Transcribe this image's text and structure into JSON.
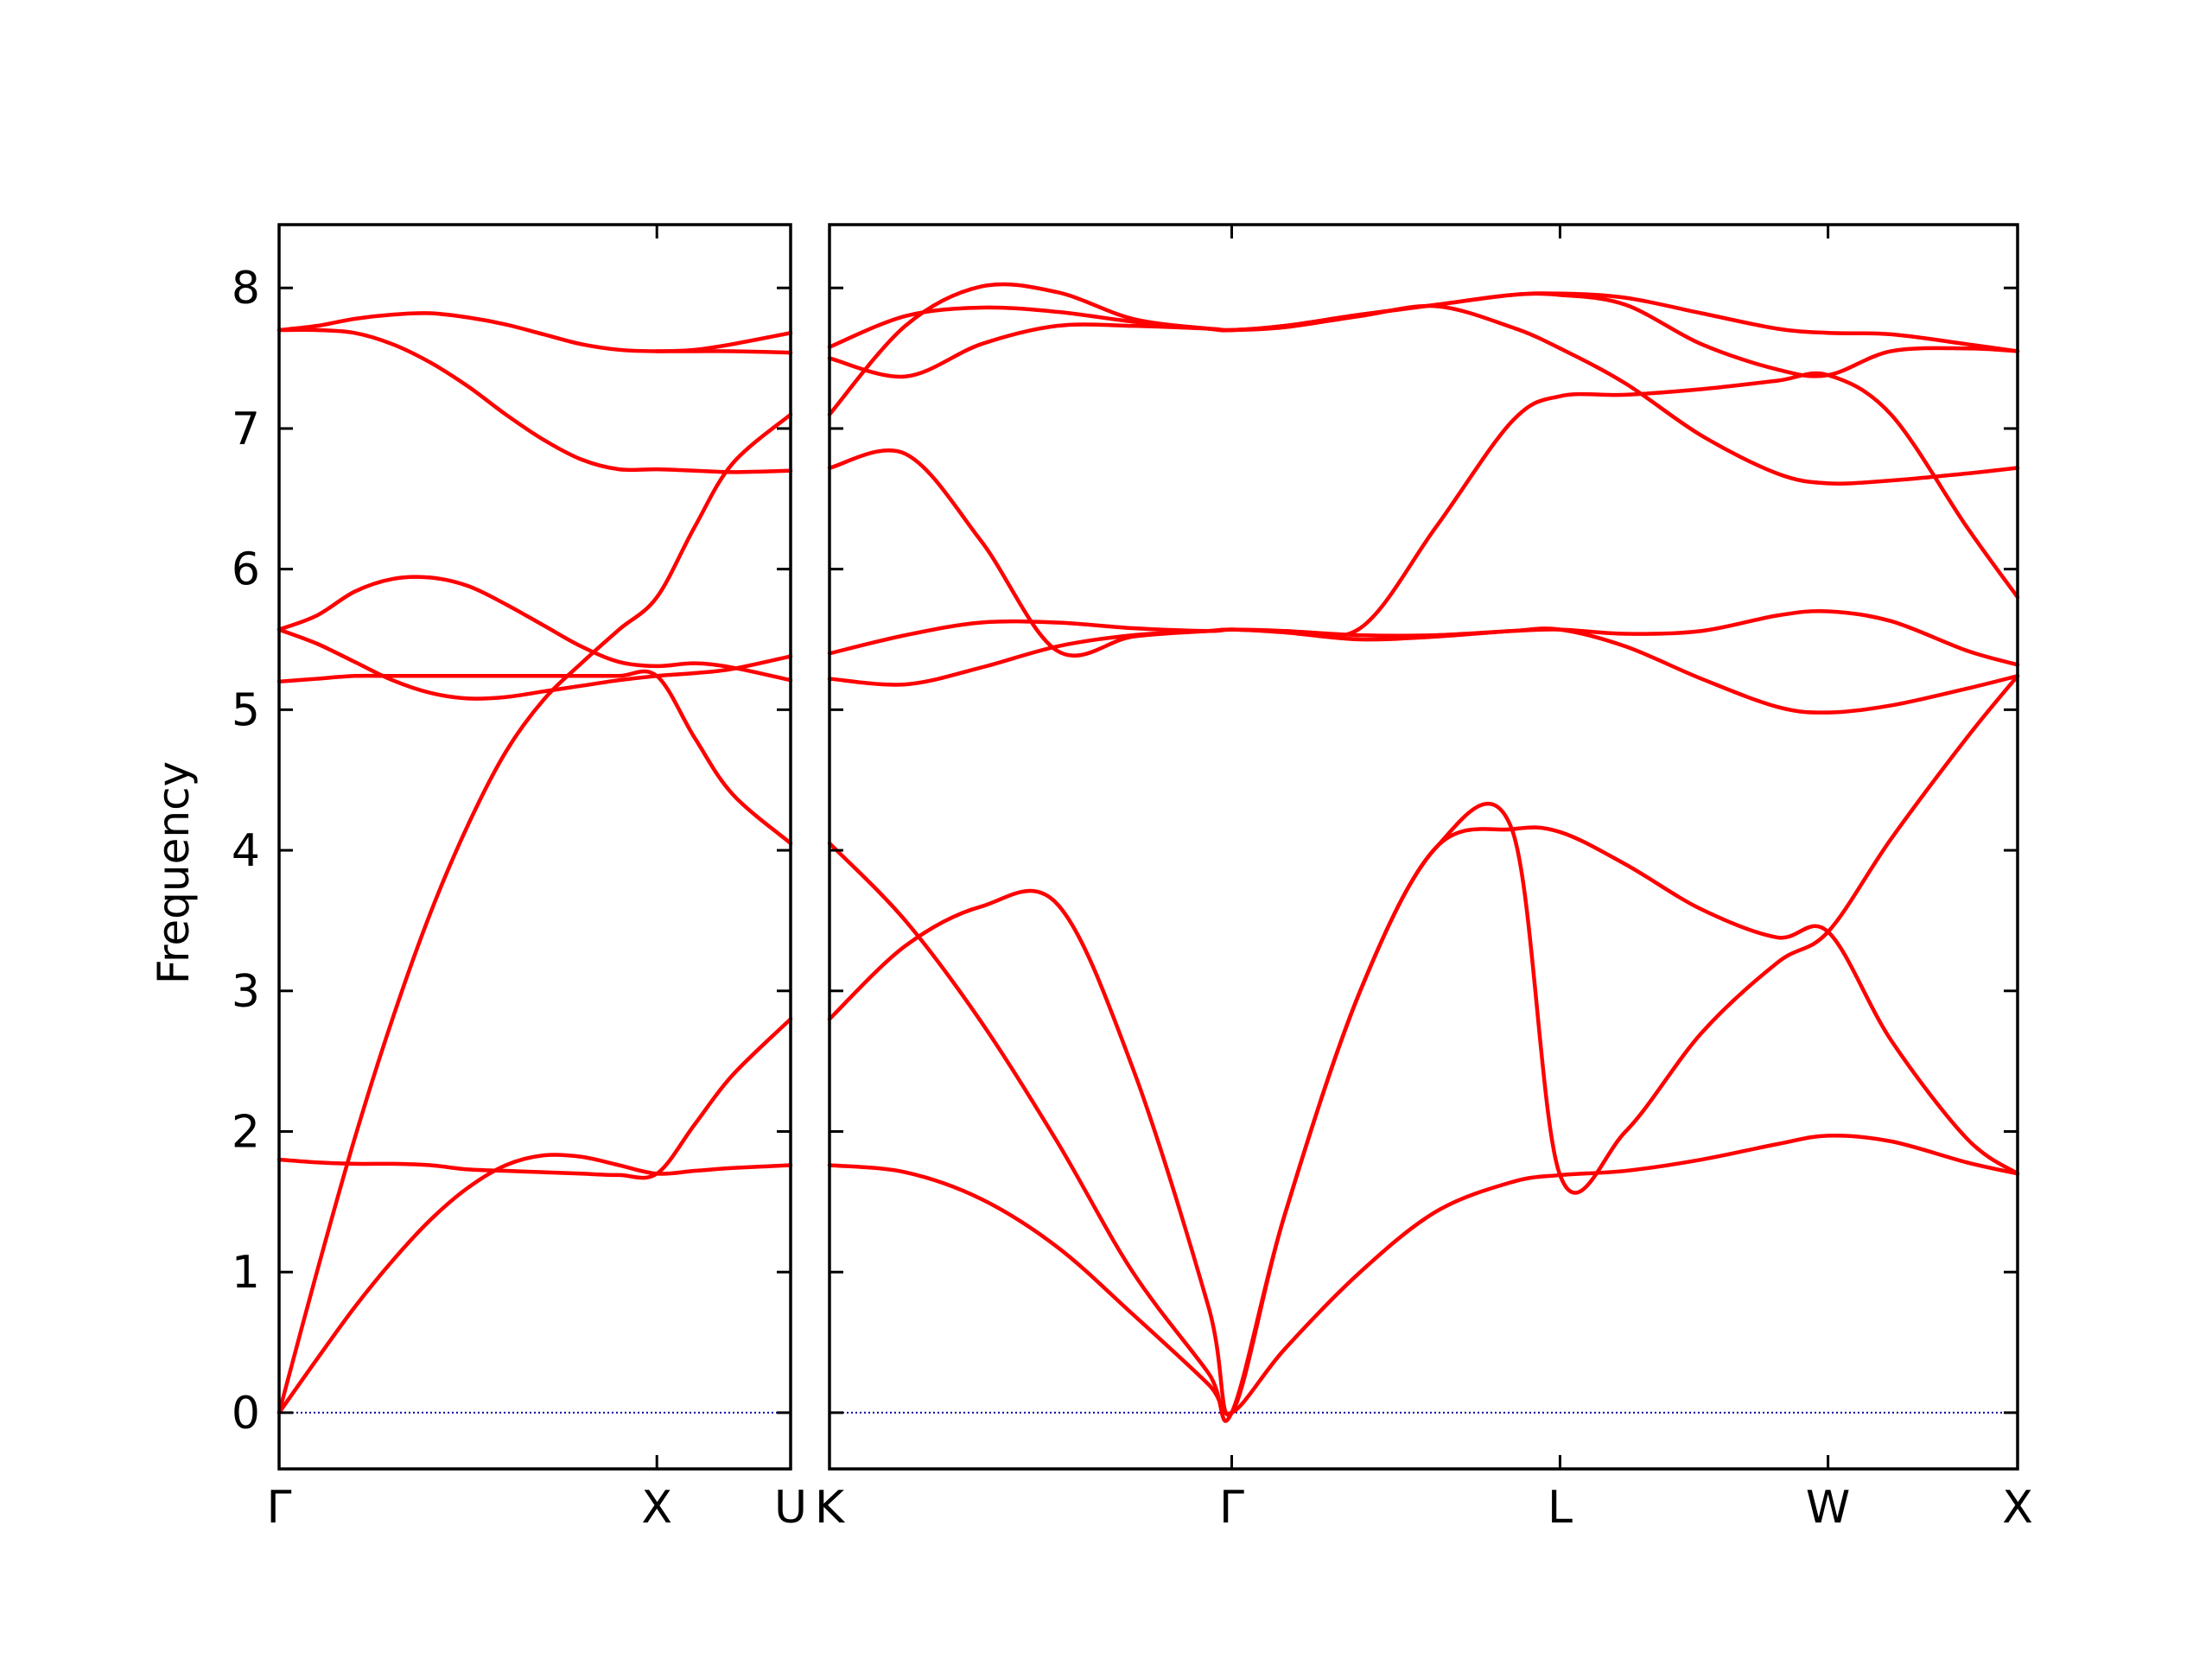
{
  "chart_data": {
    "type": "line",
    "title": "",
    "ylabel": "Frequency",
    "ylim": [
      -0.4,
      8.45
    ],
    "yticks": [
      0,
      1,
      2,
      3,
      4,
      5,
      6,
      7,
      8
    ],
    "grid": false,
    "line_color": "#ff0000",
    "zero_line_color": "#0000aa",
    "panels": [
      {
        "name": "Γ-X-U",
        "xticks": [
          {
            "x": 0.0,
            "label": "Γ"
          },
          {
            "x": 1.0,
            "label": "X"
          },
          {
            "x": 1.354,
            "label": "U"
          }
        ],
        "xlim": [
          0.0,
          1.354
        ],
        "bands": [
          {
            "x": [
              0,
              0.1,
              0.2,
              0.3,
              0.4,
              0.5,
              0.6,
              0.7,
              0.8,
              0.9,
              1.0,
              1.1,
              1.2,
              1.354
            ],
            "y": [
              0,
              0.38,
              0.75,
              1.08,
              1.37,
              1.6,
              1.76,
              1.83,
              1.82,
              1.76,
              1.7,
              1.72,
              1.74,
              1.76
            ]
          },
          {
            "x": [
              0,
              0.1,
              0.2,
              0.3,
              0.4,
              0.5,
              0.6,
              0.7,
              0.8,
              0.9,
              1.0,
              1.1,
              1.2,
              1.354
            ],
            "y": [
              0,
              1.0,
              1.95,
              2.8,
              3.55,
              4.18,
              4.7,
              5.07,
              5.33,
              5.57,
              5.8,
              6.3,
              6.75,
              7.1
            ]
          },
          {
            "x": [
              0,
              0.1,
              0.2,
              0.3,
              0.4,
              0.5,
              0.6,
              0.7,
              0.8,
              0.9,
              1.0,
              1.1,
              1.2,
              1.354
            ],
            "y": [
              5.57,
              5.47,
              5.34,
              5.21,
              5.12,
              5.08,
              5.09,
              5.13,
              5.17,
              5.21,
              5.24,
              5.26,
              5.29,
              5.38
            ]
          },
          {
            "x": [
              0,
              0.1,
              0.2,
              0.3,
              0.4,
              0.5,
              0.6,
              0.7,
              0.8,
              0.9,
              1.0,
              1.1,
              1.2,
              1.354
            ],
            "y": [
              5.57,
              5.67,
              5.84,
              5.93,
              5.94,
              5.88,
              5.75,
              5.6,
              5.45,
              5.34,
              5.31,
              5.33,
              5.3,
              5.21
            ]
          },
          {
            "x": [
              0,
              0.1,
              0.2,
              0.3,
              0.4,
              0.5,
              0.6,
              0.7,
              0.8,
              0.9,
              1.0,
              1.1,
              1.2,
              1.354
            ],
            "y": [
              1.8,
              1.78,
              1.77,
              1.77,
              1.76,
              1.73,
              1.72,
              1.71,
              1.7,
              1.69,
              1.7,
              2.05,
              2.4,
              2.8
            ]
          },
          {
            "x": [
              0,
              0.1,
              0.2,
              0.3,
              0.4,
              0.5,
              0.6,
              0.7,
              0.8,
              0.9,
              1.0,
              1.1,
              1.2,
              1.354
            ],
            "y": [
              5.2,
              5.22,
              5.24,
              5.24,
              5.24,
              5.24,
              5.24,
              5.24,
              5.24,
              5.24,
              5.24,
              4.8,
              4.4,
              4.05
            ]
          },
          {
            "x": [
              0,
              0.1,
              0.2,
              0.3,
              0.4,
              0.5,
              0.6,
              0.7,
              0.8,
              0.9,
              1.0,
              1.1,
              1.2,
              1.354
            ],
            "y": [
              7.7,
              7.7,
              7.68,
              7.6,
              7.47,
              7.3,
              7.1,
              6.92,
              6.78,
              6.71,
              6.71,
              6.7,
              6.69,
              6.7
            ]
          },
          {
            "x": [
              0,
              0.1,
              0.2,
              0.3,
              0.4,
              0.5,
              0.6,
              0.7,
              0.8,
              0.9,
              1.0,
              1.1,
              1.2,
              1.354
            ],
            "y": [
              7.7,
              7.73,
              7.78,
              7.81,
              7.82,
              7.79,
              7.74,
              7.67,
              7.6,
              7.56,
              7.55,
              7.56,
              7.6,
              7.68
            ]
          },
          {
            "x": [
              1.0,
              1.1,
              1.2,
              1.354
            ],
            "y": [
              7.55,
              7.55,
              7.55,
              7.54
            ]
          }
        ]
      },
      {
        "name": "K-Γ-L-W-X",
        "xticks": [
          {
            "x": 0.0,
            "label": "K"
          },
          {
            "x": 1.061,
            "label": "Γ"
          },
          {
            "x": 1.927,
            "label": "L"
          },
          {
            "x": 2.634,
            "label": "W"
          },
          {
            "x": 3.134,
            "label": "X"
          }
        ],
        "xlim": [
          0.0,
          3.134
        ],
        "bands": [
          {
            "x": [
              0,
              0.2,
              0.4,
              0.6,
              0.8,
              1.0,
              1.061,
              1.2,
              1.4,
              1.6,
              1.8,
              1.927,
              2.1,
              2.3,
              2.5,
              2.634,
              2.8,
              3.0,
              3.134
            ],
            "y": [
              1.76,
              1.71,
              1.52,
              1.18,
              0.7,
              0.2,
              0,
              0.45,
              1.0,
              1.43,
              1.64,
              1.69,
              1.72,
              1.8,
              1.91,
              1.97,
              1.93,
              1.78,
              1.7
            ]
          },
          {
            "x": [
              0,
              0.2,
              0.4,
              0.6,
              0.8,
              1.0,
              1.061,
              1.2,
              1.4,
              1.6,
              1.8,
              1.927,
              2.1,
              2.3,
              2.5,
              2.634,
              2.8,
              3.0,
              3.134
            ],
            "y": [
              4.05,
              3.5,
              2.78,
              1.93,
              1.0,
              0.28,
              0,
              1.4,
              3.0,
              4.02,
              4.15,
              4.13,
              3.9,
              3.58,
              3.38,
              3.42,
              2.65,
              1.95,
              1.7
            ]
          },
          {
            "x": [
              0,
              0.2,
              0.4,
              0.6,
              0.8,
              1.0,
              1.061,
              1.2,
              1.4,
              1.6,
              1.8,
              1.927,
              2.1,
              2.3,
              2.5,
              2.634,
              2.8,
              3.0,
              3.134
            ],
            "y": [
              2.8,
              3.32,
              3.6,
              3.62,
              2.45,
              0.75,
              0,
              1.4,
              3.0,
              4.02,
              4.15,
              1.69,
              2.0,
              2.7,
              3.2,
              3.42,
              4.08,
              4.8,
              5.24
            ]
          },
          {
            "x": [
              0,
              0.2,
              0.4,
              0.6,
              0.8,
              1.0,
              1.061,
              1.2,
              1.4,
              1.6,
              1.8,
              1.927,
              2.1,
              2.3,
              2.5,
              2.634,
              2.8,
              3.0,
              3.134
            ],
            "y": [
              5.22,
              5.18,
              5.3,
              5.45,
              5.53,
              5.56,
              5.57,
              5.55,
              5.5,
              5.52,
              5.56,
              5.57,
              5.45,
              5.22,
              5.02,
              4.98,
              5.03,
              5.15,
              5.24
            ]
          },
          {
            "x": [
              0,
              0.2,
              0.4,
              0.6,
              0.8,
              1.0,
              1.061,
              1.2,
              1.4,
              1.6,
              1.8,
              1.927,
              2.1,
              2.3,
              2.5,
              2.634,
              2.8,
              3.0,
              3.134
            ],
            "y": [
              5.4,
              5.53,
              5.62,
              5.62,
              5.58,
              5.56,
              5.57,
              5.56,
              5.53,
              5.53,
              5.56,
              5.57,
              5.54,
              5.56,
              5.67,
              5.7,
              5.63,
              5.42,
              5.32
            ]
          },
          {
            "x": [
              0,
              0.2,
              0.4,
              0.6,
              0.8,
              1.0,
              1.061,
              1.2,
              1.4,
              1.6,
              1.8,
              1.927,
              2.1,
              2.3,
              2.5,
              2.634,
              2.8,
              3.0,
              3.134
            ],
            "y": [
              6.72,
              6.82,
              6.2,
              5.42,
              5.52,
              5.56,
              5.57,
              5.56,
              5.58,
              6.3,
              7.05,
              7.23,
              7.24,
              7.28,
              7.34,
              7.38,
              7.1,
              6.3,
              5.8
            ]
          },
          {
            "x": [
              0,
              0.2,
              0.4,
              0.6,
              0.8,
              1.0,
              1.061,
              1.2,
              1.4,
              1.6,
              1.8,
              1.927,
              2.1,
              2.3,
              2.5,
              2.634,
              2.8,
              3.0,
              3.134
            ],
            "y": [
              7.5,
              7.37,
              7.6,
              7.73,
              7.73,
              7.71,
              7.7,
              7.72,
              7.8,
              7.87,
              7.72,
              7.57,
              7.32,
              6.95,
              6.68,
              6.61,
              6.63,
              6.68,
              6.72
            ]
          },
          {
            "x": [
              0,
              0.2,
              0.4,
              0.6,
              0.8,
              1.0,
              1.061,
              1.2,
              1.4,
              1.6,
              1.8,
              1.927,
              2.1,
              2.3,
              2.5,
              2.634,
              2.8,
              3.0,
              3.134
            ],
            "y": [
              7.1,
              7.73,
              8.01,
              7.97,
              7.78,
              7.71,
              7.7,
              7.73,
              7.81,
              7.88,
              7.95,
              7.95,
              7.88,
              7.6,
              7.42,
              7.38,
              7.55,
              7.57,
              7.55
            ]
          },
          {
            "x": [
              0,
              0.2,
              0.4,
              0.6,
              0.8,
              1.0,
              1.061,
              1.2,
              1.4,
              1.6,
              1.8,
              1.927,
              2.1,
              2.3,
              2.5,
              2.634,
              2.8,
              3.0,
              3.134
            ],
            "y": [
              7.58,
              7.8,
              7.86,
              7.83,
              7.76,
              7.71,
              7.7,
              7.73,
              7.81,
              7.88,
              7.95,
              7.96,
              7.93,
              7.82,
              7.71,
              7.68,
              7.67,
              7.6,
              7.55
            ]
          }
        ]
      }
    ]
  }
}
